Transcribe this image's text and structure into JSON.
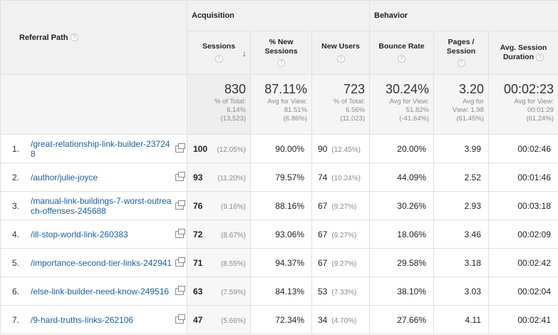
{
  "header": {
    "referral_path": "Referral Path",
    "acquisition": "Acquisition",
    "behavior": "Behavior",
    "help": "?",
    "sort_arrow": "↓",
    "columns": {
      "sessions": "Sessions",
      "pct_new_1": "% New",
      "pct_new_2": "Sessions",
      "new_users": "New Users",
      "bounce_rate": "Bounce Rate",
      "pages_1": "Pages /",
      "pages_2": "Session",
      "duration_1": "Avg. Session",
      "duration_2": "Duration"
    }
  },
  "totals": {
    "sessions": {
      "value": "830",
      "l1": "% of Total:",
      "l2": "6.14%",
      "l3": "(13,523)"
    },
    "pct_new": {
      "value": "87.11%",
      "l1": "Avg for View:",
      "l2": "81.51%",
      "l3": "(6.86%)"
    },
    "new_users": {
      "value": "723",
      "l1": "% of Total:",
      "l2": "6.56%",
      "l3": "(11,023)"
    },
    "bounce_rate": {
      "value": "30.24%",
      "l1": "Avg for View:",
      "l2": "51.82%",
      "l3": "(-41.64%)"
    },
    "pages": {
      "value": "3.20",
      "l1": "Avg for",
      "l2": "View: 1.98",
      "l3": "(61.45%)"
    },
    "duration": {
      "value": "00:02:23",
      "l1": "Avg for View:",
      "l2": "00:01:29",
      "l3": "(61.24%)"
    }
  },
  "rows": [
    {
      "index": "1.",
      "path": "/great-relationship-link-builder-237248",
      "sessions": "100",
      "sessions_pct": "(12.05%)",
      "pct_new": "90.00%",
      "new_users": "90",
      "new_users_pct": "(12.45%)",
      "bounce": "20.00%",
      "pages": "3.99",
      "duration": "00:02:46"
    },
    {
      "index": "2.",
      "path": "/author/julie-joyce",
      "sessions": "93",
      "sessions_pct": "(11.20%)",
      "pct_new": "79.57%",
      "new_users": "74",
      "new_users_pct": "(10.24%)",
      "bounce": "44.09%",
      "pages": "2.52",
      "duration": "00:01:46"
    },
    {
      "index": "3.",
      "path": "/manual-link-buildings-7-worst-outreach-offenses-245688",
      "sessions": "76",
      "sessions_pct": "(9.16%)",
      "pct_new": "88.16%",
      "new_users": "67",
      "new_users_pct": "(9.27%)",
      "bounce": "30.26%",
      "pages": "2.93",
      "duration": "00:03:18"
    },
    {
      "index": "4.",
      "path": "/ill-stop-world-link-260383",
      "sessions": "72",
      "sessions_pct": "(8.67%)",
      "pct_new": "93.06%",
      "new_users": "67",
      "new_users_pct": "(9.27%)",
      "bounce": "18.06%",
      "pages": "3.46",
      "duration": "00:02:09"
    },
    {
      "index": "5.",
      "path": "/importance-second-tier-links-242941",
      "sessions": "71",
      "sessions_pct": "(8.55%)",
      "pct_new": "94.37%",
      "new_users": "67",
      "new_users_pct": "(9.27%)",
      "bounce": "29.58%",
      "pages": "3.18",
      "duration": "00:02:42"
    },
    {
      "index": "6.",
      "path": "/else-link-builder-need-know-249516",
      "sessions": "63",
      "sessions_pct": "(7.59%)",
      "pct_new": "84.13%",
      "new_users": "53",
      "new_users_pct": "(7.33%)",
      "bounce": "38.10%",
      "pages": "3.03",
      "duration": "00:02:04"
    },
    {
      "index": "7.",
      "path": "/9-hard-truths-links-262106",
      "sessions": "47",
      "sessions_pct": "(5.66%)",
      "pct_new": "72.34%",
      "new_users": "34",
      "new_users_pct": "(4.70%)",
      "bounce": "27.66%",
      "pages": "4.11",
      "duration": "00:02:41"
    }
  ]
}
